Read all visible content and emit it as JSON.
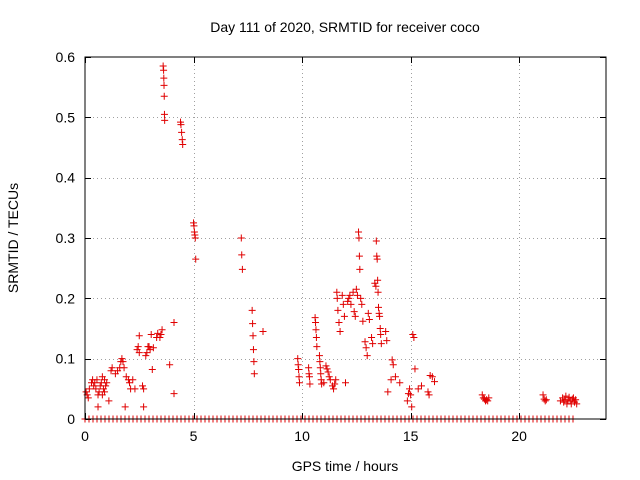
{
  "chart_data": {
    "type": "scatter",
    "title": "Day 111 of 2020, SRMTID for receiver coco",
    "xlabel": "GPS time / hours",
    "ylabel": "SRMTID / TECUs",
    "xlim": [
      0,
      24
    ],
    "ylim": [
      0,
      0.6
    ],
    "xticks": [
      0,
      5,
      10,
      15,
      20
    ],
    "yticks": [
      0,
      0.1,
      0.2,
      0.3,
      0.4,
      0.5,
      0.6
    ],
    "xtick_labels": [
      "0",
      "5",
      "10",
      "15",
      "20"
    ],
    "ytick_labels": [
      "0",
      "0.1",
      "0.2",
      "0.3",
      "0.4",
      "0.5",
      "0.6"
    ],
    "grid": true,
    "legend": "none",
    "marker": "+",
    "color": "#e00000",
    "zero_baseline": {
      "y": 0,
      "x_ranges": [
        [
          0.0,
          22.6
        ]
      ]
    },
    "series": [
      {
        "name": "SRMTID",
        "points": [
          [
            0.05,
            0.045
          ],
          [
            0.1,
            0.04
          ],
          [
            0.15,
            0.035
          ],
          [
            0.2,
            0.05
          ],
          [
            0.3,
            0.06
          ],
          [
            0.35,
            0.065
          ],
          [
            0.4,
            0.055
          ],
          [
            0.45,
            0.06
          ],
          [
            0.5,
            0.05
          ],
          [
            0.55,
            0.065
          ],
          [
            0.6,
            0.04
          ],
          [
            0.6,
            0.02
          ],
          [
            0.65,
            0.045
          ],
          [
            0.7,
            0.055
          ],
          [
            0.75,
            0.06
          ],
          [
            0.8,
            0.07
          ],
          [
            0.8,
            0.04
          ],
          [
            0.85,
            0.05
          ],
          [
            0.9,
            0.065
          ],
          [
            0.9,
            0.045
          ],
          [
            0.95,
            0.055
          ],
          [
            1.0,
            0.06
          ],
          [
            1.1,
            0.03
          ],
          [
            1.2,
            0.08
          ],
          [
            1.25,
            0.085
          ],
          [
            1.4,
            0.075
          ],
          [
            1.5,
            0.08
          ],
          [
            1.6,
            0.085
          ],
          [
            1.65,
            0.095
          ],
          [
            1.7,
            0.1
          ],
          [
            1.75,
            0.095
          ],
          [
            1.8,
            0.085
          ],
          [
            1.85,
            0.02
          ],
          [
            1.9,
            0.07
          ],
          [
            2.0,
            0.065
          ],
          [
            2.05,
            0.06
          ],
          [
            2.1,
            0.05
          ],
          [
            2.2,
            0.065
          ],
          [
            2.3,
            0.05
          ],
          [
            2.4,
            0.115
          ],
          [
            2.45,
            0.12
          ],
          [
            2.5,
            0.138
          ],
          [
            2.5,
            0.11
          ],
          [
            2.65,
            0.055
          ],
          [
            2.7,
            0.05
          ],
          [
            2.7,
            0.02
          ],
          [
            2.8,
            0.105
          ],
          [
            2.85,
            0.11
          ],
          [
            2.9,
            0.12
          ],
          [
            2.95,
            0.12
          ],
          [
            3.0,
            0.115
          ],
          [
            3.05,
            0.14
          ],
          [
            3.1,
            0.082
          ],
          [
            3.15,
            0.118
          ],
          [
            3.3,
            0.135
          ],
          [
            3.35,
            0.142
          ],
          [
            3.45,
            0.135
          ],
          [
            3.5,
            0.14
          ],
          [
            3.55,
            0.148
          ],
          [
            3.6,
            0.585
          ],
          [
            3.62,
            0.578
          ],
          [
            3.63,
            0.565
          ],
          [
            3.64,
            0.553
          ],
          [
            3.65,
            0.535
          ],
          [
            3.66,
            0.505
          ],
          [
            3.67,
            0.495
          ],
          [
            3.9,
            0.09
          ],
          [
            4.1,
            0.042
          ],
          [
            4.1,
            0.16
          ],
          [
            4.4,
            0.492
          ],
          [
            4.42,
            0.488
          ],
          [
            4.45,
            0.475
          ],
          [
            4.48,
            0.463
          ],
          [
            4.5,
            0.455
          ],
          [
            5.0,
            0.325
          ],
          [
            5.02,
            0.32
          ],
          [
            5.04,
            0.31
          ],
          [
            5.06,
            0.305
          ],
          [
            5.08,
            0.3
          ],
          [
            5.1,
            0.265
          ],
          [
            7.2,
            0.3
          ],
          [
            7.22,
            0.272
          ],
          [
            7.25,
            0.248
          ],
          [
            7.7,
            0.18
          ],
          [
            7.72,
            0.158
          ],
          [
            7.74,
            0.138
          ],
          [
            7.76,
            0.115
          ],
          [
            7.78,
            0.095
          ],
          [
            7.8,
            0.075
          ],
          [
            8.2,
            0.145
          ],
          [
            9.8,
            0.1
          ],
          [
            9.82,
            0.09
          ],
          [
            9.84,
            0.082
          ],
          [
            9.86,
            0.07
          ],
          [
            9.88,
            0.06
          ],
          [
            10.3,
            0.085
          ],
          [
            10.32,
            0.075
          ],
          [
            10.34,
            0.07
          ],
          [
            10.36,
            0.058
          ],
          [
            10.6,
            0.168
          ],
          [
            10.62,
            0.16
          ],
          [
            10.64,
            0.148
          ],
          [
            10.66,
            0.135
          ],
          [
            10.68,
            0.12
          ],
          [
            10.8,
            0.105
          ],
          [
            10.82,
            0.095
          ],
          [
            10.84,
            0.085
          ],
          [
            10.86,
            0.075
          ],
          [
            10.88,
            0.065
          ],
          [
            10.9,
            0.058
          ],
          [
            11.0,
            0.06
          ],
          [
            11.1,
            0.088
          ],
          [
            11.15,
            0.083
          ],
          [
            11.2,
            0.078
          ],
          [
            11.25,
            0.07
          ],
          [
            11.3,
            0.065
          ],
          [
            11.4,
            0.055
          ],
          [
            11.45,
            0.05
          ],
          [
            11.5,
            0.058
          ],
          [
            11.55,
            0.065
          ],
          [
            11.6,
            0.21
          ],
          [
            11.62,
            0.2
          ],
          [
            11.65,
            0.18
          ],
          [
            11.7,
            0.16
          ],
          [
            11.75,
            0.145
          ],
          [
            11.85,
            0.205
          ],
          [
            11.9,
            0.19
          ],
          [
            11.95,
            0.17
          ],
          [
            12.0,
            0.06
          ],
          [
            12.1,
            0.195
          ],
          [
            12.15,
            0.2
          ],
          [
            12.2,
            0.205
          ],
          [
            12.25,
            0.19
          ],
          [
            12.35,
            0.21
          ],
          [
            12.4,
            0.178
          ],
          [
            12.45,
            0.17
          ],
          [
            12.5,
            0.215
          ],
          [
            12.55,
            0.205
          ],
          [
            12.6,
            0.31
          ],
          [
            12.62,
            0.3
          ],
          [
            12.64,
            0.27
          ],
          [
            12.66,
            0.248
          ],
          [
            12.7,
            0.2
          ],
          [
            12.75,
            0.19
          ],
          [
            12.8,
            0.162
          ],
          [
            12.9,
            0.128
          ],
          [
            12.95,
            0.118
          ],
          [
            13.0,
            0.105
          ],
          [
            13.05,
            0.175
          ],
          [
            13.1,
            0.165
          ],
          [
            13.2,
            0.135
          ],
          [
            13.25,
            0.125
          ],
          [
            13.35,
            0.225
          ],
          [
            13.4,
            0.22
          ],
          [
            13.42,
            0.295
          ],
          [
            13.44,
            0.27
          ],
          [
            13.46,
            0.265
          ],
          [
            13.48,
            0.23
          ],
          [
            13.5,
            0.21
          ],
          [
            13.52,
            0.185
          ],
          [
            13.55,
            0.175
          ],
          [
            13.57,
            0.17
          ],
          [
            13.6,
            0.15
          ],
          [
            13.62,
            0.14
          ],
          [
            13.65,
            0.125
          ],
          [
            13.85,
            0.145
          ],
          [
            13.9,
            0.13
          ],
          [
            13.95,
            0.045
          ],
          [
            14.1,
            0.065
          ],
          [
            14.15,
            0.098
          ],
          [
            14.2,
            0.09
          ],
          [
            14.3,
            0.07
          ],
          [
            14.5,
            0.06
          ],
          [
            14.85,
            0.03
          ],
          [
            14.9,
            0.042
          ],
          [
            14.95,
            0.05
          ],
          [
            15.0,
            0.04
          ],
          [
            15.05,
            0.02
          ],
          [
            15.1,
            0.14
          ],
          [
            15.15,
            0.135
          ],
          [
            15.2,
            0.083
          ],
          [
            15.35,
            0.05
          ],
          [
            15.5,
            0.055
          ],
          [
            15.8,
            0.045
          ],
          [
            15.85,
            0.04
          ],
          [
            15.9,
            0.072
          ],
          [
            16.0,
            0.07
          ],
          [
            16.1,
            0.062
          ],
          [
            18.3,
            0.04
          ],
          [
            18.35,
            0.035
          ],
          [
            18.4,
            0.033
          ],
          [
            18.45,
            0.03
          ],
          [
            18.5,
            0.032
          ],
          [
            18.55,
            0.03
          ],
          [
            18.6,
            0.035
          ],
          [
            21.1,
            0.04
          ],
          [
            21.15,
            0.033
          ],
          [
            21.2,
            0.03
          ],
          [
            21.25,
            0.032
          ],
          [
            21.9,
            0.03
          ],
          [
            22.0,
            0.035
          ],
          [
            22.05,
            0.028
          ],
          [
            22.1,
            0.032
          ],
          [
            22.15,
            0.038
          ],
          [
            22.2,
            0.025
          ],
          [
            22.25,
            0.03
          ],
          [
            22.3,
            0.036
          ],
          [
            22.35,
            0.03
          ],
          [
            22.4,
            0.025
          ],
          [
            22.45,
            0.033
          ],
          [
            22.5,
            0.035
          ],
          [
            22.55,
            0.028
          ],
          [
            22.6,
            0.032
          ],
          [
            22.65,
            0.025
          ]
        ]
      }
    ]
  }
}
